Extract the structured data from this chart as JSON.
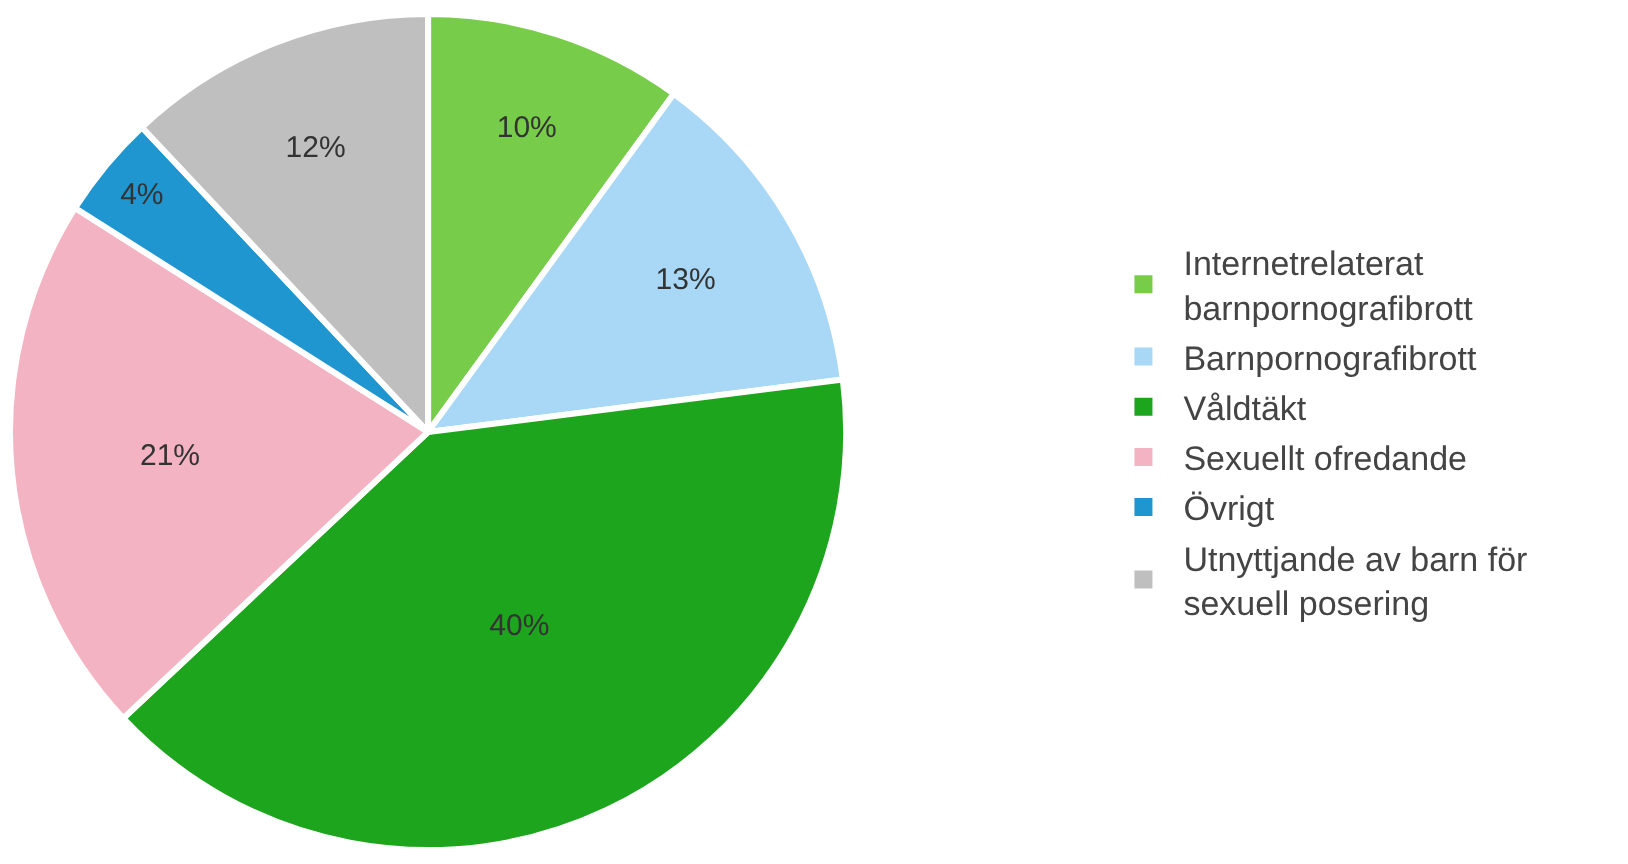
{
  "chart_data": {
    "type": "pie",
    "categories": [
      "Internetrelaterat barnpornografibrott",
      "Barnpornografibrott",
      "Våldtäkt",
      "Sexuellt ofredande",
      "Övrigt",
      "Utnyttjande av barn för sexuell posering"
    ],
    "values": [
      10,
      13,
      40,
      21,
      4,
      12
    ],
    "colors": [
      "#77cc4a",
      "#a8d8f5",
      "#1ea51e",
      "#f3b3c3",
      "#1f96d0",
      "#bfbfbf"
    ],
    "value_labels": [
      "10%",
      "13%",
      "40%",
      "21%",
      "4%",
      "12%"
    ],
    "legend": "right"
  }
}
